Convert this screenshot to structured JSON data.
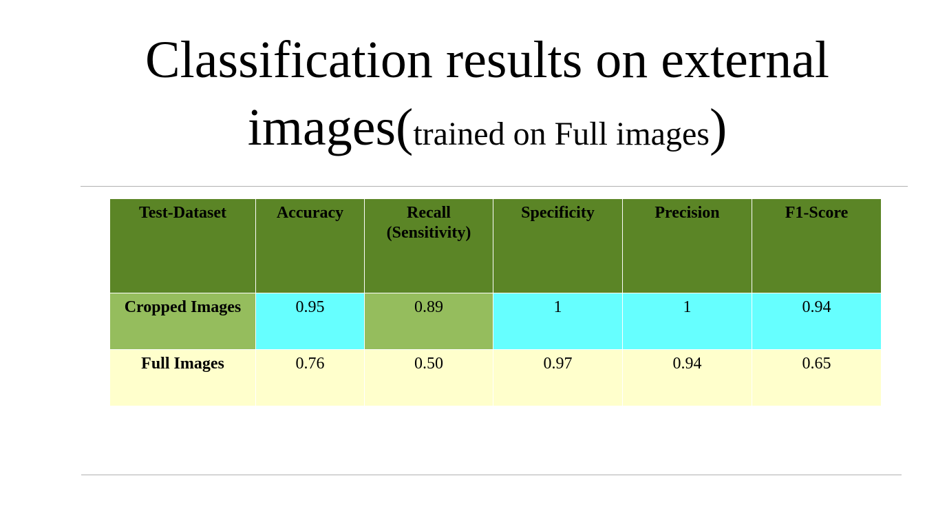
{
  "slide": {
    "title_main": "Classification results on external",
    "title_line2": "images(",
    "title_note": "trained on Full images",
    "title_close": ")"
  },
  "table": {
    "headers": [
      "Test-Dataset",
      "Accuracy",
      "Recall",
      "(Sensitivity)",
      "Specificity",
      "Precision",
      "F1-Score"
    ],
    "rows": [
      {
        "label": "Cropped Images",
        "accuracy": "0.95",
        "recall": "0.89",
        "specificity": "1",
        "precision": "1",
        "f1": "0.94"
      },
      {
        "label": "Full Images",
        "accuracy": "0.76",
        "recall": "0.50",
        "specificity": "0.97",
        "precision": "0.94",
        "f1": "0.65"
      }
    ]
  },
  "colors": {
    "header_bg": "#5b8526",
    "cyan_cell": "#66ffff",
    "light_green_cell": "#95bd5d",
    "row2_bg": "#ffffcc"
  }
}
